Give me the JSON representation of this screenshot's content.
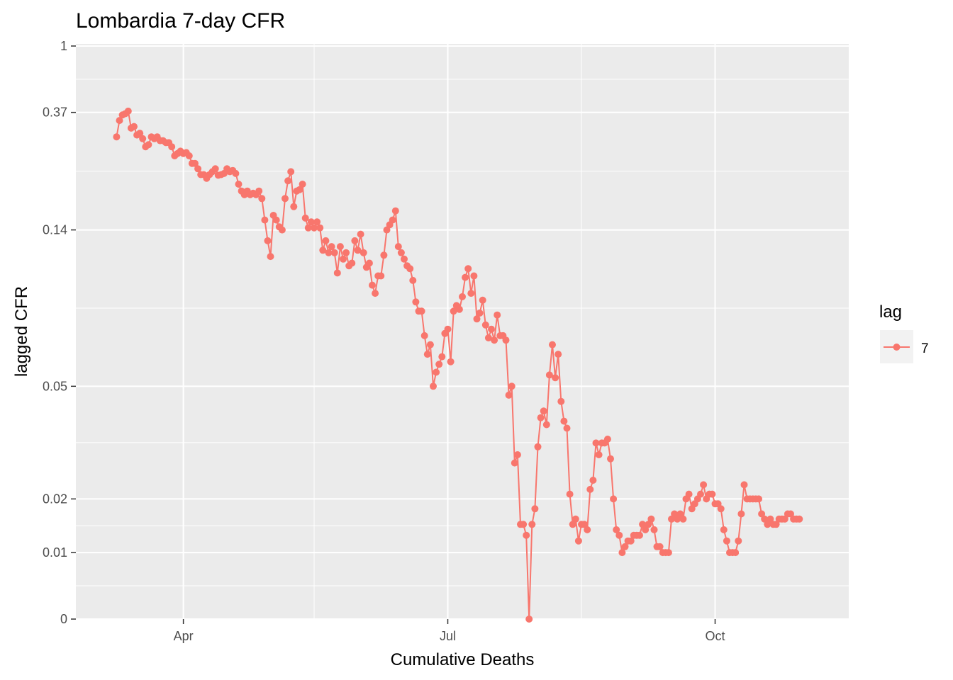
{
  "chart_data": {
    "type": "line",
    "title": "Lombardia 7-day CFR",
    "xlabel": "Cumulative Deaths",
    "ylabel": "lagged CFR",
    "x_ticks": [
      {
        "date": "2020-04-01",
        "label": "Apr"
      },
      {
        "date": "2020-07-01",
        "label": "Jul"
      },
      {
        "date": "2020-10-01",
        "label": "Oct"
      }
    ],
    "x_minor_ticks": [
      "2020-05-16",
      "2020-08-16"
    ],
    "xlim": [
      "2020-02-24",
      "2020-11-16"
    ],
    "y_ticks": [
      {
        "value": 1,
        "label": "1"
      },
      {
        "value": 0.37,
        "label": "0.37"
      },
      {
        "value": 0.14,
        "label": "0.14"
      },
      {
        "value": 0.05,
        "label": "0.05"
      },
      {
        "value": 0.02,
        "label": "0.02"
      },
      {
        "value": 0.01,
        "label": "0.01"
      },
      {
        "value": 0,
        "label": "0"
      }
    ],
    "ylim": [
      0,
      1.05
    ],
    "grid": true,
    "legend": {
      "title": "lag",
      "position": "right"
    },
    "series": [
      {
        "name": "7",
        "color": "#F8766D",
        "start_date": "2020-03-09",
        "values": [
          0.29,
          0.34,
          0.36,
          0.365,
          0.375,
          0.315,
          0.32,
          0.295,
          0.3,
          0.285,
          0.265,
          0.27,
          0.29,
          0.285,
          0.29,
          0.28,
          0.28,
          0.275,
          0.275,
          0.265,
          0.245,
          0.25,
          0.255,
          0.25,
          0.252,
          0.245,
          0.23,
          0.23,
          0.22,
          0.21,
          0.21,
          0.204,
          0.21,
          0.215,
          0.22,
          0.209,
          0.21,
          0.212,
          0.22,
          0.215,
          0.217,
          0.212,
          0.195,
          0.185,
          0.18,
          0.185,
          0.18,
          0.182,
          0.18,
          0.185,
          0.175,
          0.15,
          0.13,
          0.117,
          0.155,
          0.15,
          0.143,
          0.14,
          0.175,
          0.2,
          0.215,
          0.165,
          0.185,
          0.187,
          0.195,
          0.152,
          0.142,
          0.148,
          0.142,
          0.148,
          0.142,
          0.122,
          0.13,
          0.12,
          0.125,
          0.12,
          0.105,
          0.125,
          0.115,
          0.12,
          0.11,
          0.112,
          0.13,
          0.122,
          0.136,
          0.12,
          0.109,
          0.112,
          0.097,
          0.092,
          0.103,
          0.103,
          0.118,
          0.14,
          0.145,
          0.15,
          0.16,
          0.125,
          0.12,
          0.115,
          0.11,
          0.108,
          0.1,
          0.087,
          0.082,
          0.082,
          0.07,
          0.062,
          0.066,
          0.05,
          0.055,
          0.058,
          0.061,
          0.071,
          0.073,
          0.059,
          0.082,
          0.085,
          0.083,
          0.09,
          0.102,
          0.108,
          0.092,
          0.103,
          0.078,
          0.081,
          0.088,
          0.075,
          0.069,
          0.073,
          0.068,
          0.08,
          0.07,
          0.07,
          0.068,
          0.047,
          0.05,
          0.028,
          0.03,
          0.015,
          0.015,
          0.013,
          0.0,
          0.015,
          0.018,
          0.032,
          0.04,
          0.042,
          0.038,
          0.054,
          0.066,
          0.053,
          0.062,
          0.045,
          0.039,
          0.037,
          0.021,
          0.015,
          0.016,
          0.012,
          0.015,
          0.015,
          0.014,
          0.022,
          0.024,
          0.033,
          0.03,
          0.033,
          0.033,
          0.034,
          0.029,
          0.02,
          0.014,
          0.013,
          0.01,
          0.011,
          0.012,
          0.012,
          0.013,
          0.013,
          0.013,
          0.015,
          0.014,
          0.015,
          0.016,
          0.014,
          0.011,
          0.011,
          0.01,
          0.01,
          0.01,
          0.016,
          0.017,
          0.016,
          0.017,
          0.016,
          0.02,
          0.021,
          0.018,
          0.019,
          0.02,
          0.021,
          0.023,
          0.02,
          0.021,
          0.021,
          0.019,
          0.019,
          0.018,
          0.014,
          0.012,
          0.01,
          0.01,
          0.01,
          0.012,
          0.017,
          0.023,
          0.02,
          0.02,
          0.02,
          0.02,
          0.02,
          0.017,
          0.016,
          0.015,
          0.016,
          0.015,
          0.015,
          0.016,
          0.016,
          0.016,
          0.017,
          0.017,
          0.016,
          0.016,
          0.016
        ]
      }
    ]
  }
}
